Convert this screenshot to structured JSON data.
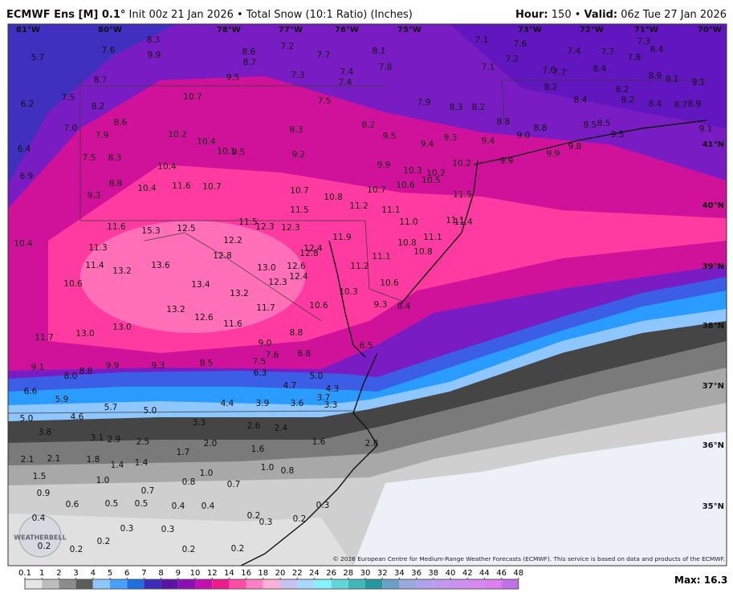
{
  "header": {
    "model": "ECMWF Ens [M] 0.1°",
    "description": "Init 00z 21 Jan 2026 • Total Snow (10:1 Ratio) (Inches)",
    "hour_label": "Hour:",
    "hour": "150 •",
    "valid_label": "Valid:",
    "valid": "06z Tue 27 Jan 2026"
  },
  "lat_labels": [
    "41°N",
    "40°N",
    "39°N",
    "38°N",
    "37°N",
    "36°N",
    "35°N"
  ],
  "lon_labels": [
    "81°W",
    "80°W",
    "78°W",
    "77°W",
    "76°W",
    "75°W",
    "73°W",
    "72°W",
    "71°W",
    "70°W"
  ],
  "points": [
    "8.3",
    "7.6",
    "5.7",
    "9.9",
    "8.6",
    "8.7",
    "7.2",
    "7.7",
    "8.1",
    "7.1",
    "7.6",
    "7.4",
    "7.7",
    "7.3",
    "8.4",
    "7.3",
    "7.4",
    "7.8",
    "7.2",
    "7.1",
    "7.0",
    "7.7",
    "8.4",
    "7.8",
    "8.9",
    "9.1",
    "9.1",
    "8.7",
    "9.5",
    "7.4",
    "7.5",
    "6.2",
    "8.2",
    "10.7",
    "7.5",
    "7.9",
    "8.2",
    "8.4",
    "8.2",
    "8.2",
    "8.4",
    "8.7",
    "8.9",
    "8.6",
    "7.0",
    "8.3",
    "8.2",
    "8.8",
    "8.2",
    "8.3",
    "8.8",
    "9.0",
    "8.5",
    "8.5",
    "9.5",
    "9.1",
    "7.9",
    "10.2",
    "10.4",
    "9.5",
    "9.3",
    "9.4",
    "9.4",
    "6.4",
    "10.1",
    "9.5",
    "9.2",
    "9.8",
    "9.9",
    "7.5",
    "8.3",
    "10.2",
    "9.9",
    "10.4",
    "9.9",
    "10.3",
    "10.2",
    "10.5",
    "6.9",
    "8.8",
    "11.6",
    "10.7",
    "10.4",
    "10.6",
    "10.7",
    "10.7",
    "10.8",
    "11.5",
    "9.3",
    "11.2",
    "11.5",
    "11.1",
    "11.1",
    "11.4",
    "11.0",
    "11.6",
    "11.5",
    "12.3",
    "12.5",
    "12.3",
    "15.3",
    "12.2",
    "10.4",
    "11.1",
    "11.9",
    "10.8",
    "11.3",
    "12.4",
    "12.8",
    "12.8",
    "10.8",
    "11.1",
    "11.4",
    "13.6",
    "13.0",
    "12.6",
    "11.2",
    "13.2",
    "12.4",
    "10.6",
    "13.4",
    "12.3",
    "10.6",
    "13.2",
    "10.3",
    "10.6",
    "11.7",
    "9.3",
    "8.4",
    "13.2",
    "12.6",
    "13.0",
    "11.6",
    "13.0",
    "8.8",
    "11.7",
    "6.5",
    "9.0",
    "6.8",
    "7.6",
    "7.5",
    "9.1",
    "9.9",
    "9.3",
    "8.5",
    "8.8",
    "8.0",
    "6.3",
    "5.0",
    "4.7",
    "4.3",
    "6.6",
    "3.7",
    "5.9",
    "3.9",
    "3.6",
    "3.3",
    "4.4",
    "5.7",
    "5.0",
    "5.0",
    "4.6",
    "3.3",
    "2.6",
    "2.4",
    "3.8",
    "3.1",
    "2.9",
    "2.5",
    "2.0",
    "1.6",
    "2.8",
    "1.6",
    "1.7",
    "2.1",
    "2.1",
    "1.8",
    "1.4",
    "1.4",
    "1.0",
    "0.8",
    "1.0",
    "1.5",
    "1.0",
    "0.8",
    "0.7",
    "0.7",
    "0.9",
    "0.6",
    "0.5",
    "0.5",
    "0.4",
    "0.4",
    "0.3",
    "0.2",
    "0.4",
    "0.3",
    "0.2",
    "0.3",
    "0.3",
    "0.2",
    "0.2",
    "0.2",
    "0.2",
    "0.2"
  ],
  "logo": "WEATHERBELL",
  "copyright": "© 2026 European Centre for Medium-Range Weather Forecasts (ECMWF). This service is based on data and products of the ECMWF.",
  "colorbar": {
    "ticks": [
      0.1,
      1,
      2,
      3,
      4,
      5,
      6,
      7,
      8,
      9,
      10,
      12,
      14,
      16,
      18,
      20,
      22,
      24,
      26,
      28,
      30,
      32,
      34,
      36,
      38,
      40,
      42,
      44,
      46,
      48
    ],
    "colors": [
      "#e6e6e6",
      "#bdbdbd",
      "#8c8c8c",
      "#5c5c5c",
      "#8ec6ff",
      "#4aa0ff",
      "#1f6fe0",
      "#3a2bb8",
      "#5a12a8",
      "#8a10b4",
      "#c010b0",
      "#ee1a8c",
      "#ff4aa6",
      "#ff80c2",
      "#ffb0d6",
      "#c8c0ee",
      "#a8d8ff",
      "#88f0ff",
      "#60d8d8",
      "#40b8b8",
      "#2898a0",
      "#6aa0c8",
      "#9aa8e0",
      "#b0a0ee",
      "#c098f0",
      "#cc90f0",
      "#d488f0",
      "#dc80f0",
      "#c070e8"
    ]
  },
  "max": {
    "label": "Max:",
    "value": 16.3
  }
}
